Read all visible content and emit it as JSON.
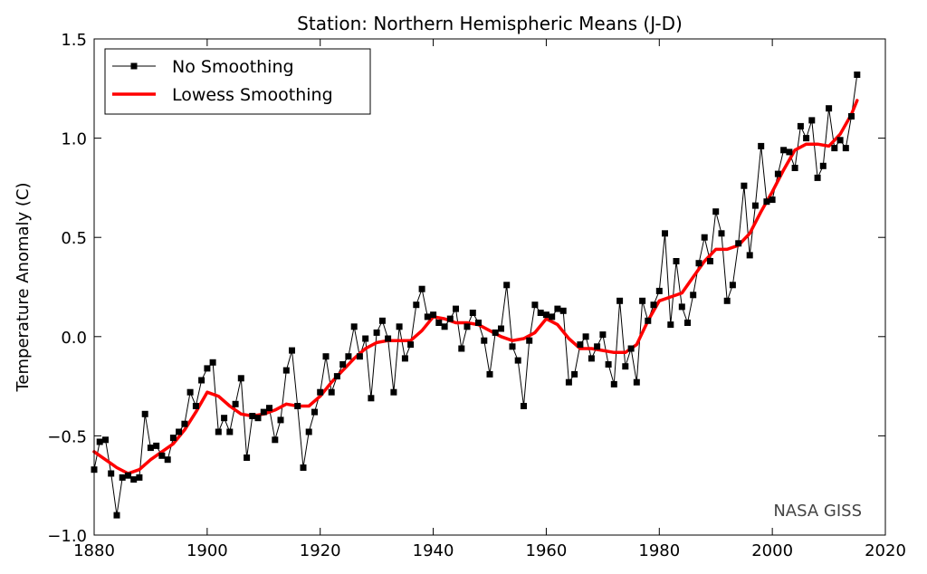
{
  "chart_data": {
    "type": "line",
    "title": "Station: Northern Hemispheric Means (J-D)",
    "xlabel": "",
    "ylabel": "Temperature Anomaly (C)",
    "xlim": [
      1880,
      2020
    ],
    "ylim": [
      -1.0,
      1.5
    ],
    "xticks": [
      1880,
      1900,
      1920,
      1940,
      1960,
      1980,
      2000,
      2020
    ],
    "yticks": [
      -1.0,
      -0.5,
      0.0,
      0.5,
      1.0,
      1.5
    ],
    "xtick_labels": [
      "1880",
      "1900",
      "1920",
      "1940",
      "1960",
      "1980",
      "2000",
      "2020"
    ],
    "ytick_labels": [
      "−1.0",
      "−0.5",
      "0.0",
      "0.5",
      "1.0",
      "1.5"
    ],
    "grid": false,
    "legend_position": "top-left",
    "annotation": "NASA GISS",
    "series": [
      {
        "name": "No Smoothing",
        "color": "#000000",
        "marker": "square",
        "x": [
          1880,
          1881,
          1882,
          1883,
          1884,
          1885,
          1886,
          1887,
          1888,
          1889,
          1890,
          1891,
          1892,
          1893,
          1894,
          1895,
          1896,
          1897,
          1898,
          1899,
          1900,
          1901,
          1902,
          1903,
          1904,
          1905,
          1906,
          1907,
          1908,
          1909,
          1910,
          1911,
          1912,
          1913,
          1914,
          1915,
          1916,
          1917,
          1918,
          1919,
          1920,
          1921,
          1922,
          1923,
          1924,
          1925,
          1926,
          1927,
          1928,
          1929,
          1930,
          1931,
          1932,
          1933,
          1934,
          1935,
          1936,
          1937,
          1938,
          1939,
          1940,
          1941,
          1942,
          1943,
          1944,
          1945,
          1946,
          1947,
          1948,
          1949,
          1950,
          1951,
          1952,
          1953,
          1954,
          1955,
          1956,
          1957,
          1958,
          1959,
          1960,
          1961,
          1962,
          1963,
          1964,
          1965,
          1966,
          1967,
          1968,
          1969,
          1970,
          1971,
          1972,
          1973,
          1974,
          1975,
          1976,
          1977,
          1978,
          1979,
          1980,
          1981,
          1982,
          1983,
          1984,
          1985,
          1986,
          1987,
          1988,
          1989,
          1990,
          1991,
          1992,
          1993,
          1994,
          1995,
          1996,
          1997,
          1998,
          1999,
          2000,
          2001,
          2002,
          2003,
          2004,
          2005,
          2006,
          2007,
          2008,
          2009,
          2010,
          2011,
          2012,
          2013,
          2014,
          2015
        ],
        "y": [
          -0.67,
          -0.53,
          -0.52,
          -0.69,
          -0.9,
          -0.71,
          -0.7,
          -0.72,
          -0.71,
          -0.39,
          -0.56,
          -0.55,
          -0.6,
          -0.62,
          -0.51,
          -0.48,
          -0.44,
          -0.28,
          -0.35,
          -0.22,
          -0.16,
          -0.13,
          -0.48,
          -0.41,
          -0.48,
          -0.34,
          -0.21,
          -0.61,
          -0.4,
          -0.41,
          -0.38,
          -0.36,
          -0.52,
          -0.42,
          -0.17,
          -0.07,
          -0.35,
          -0.66,
          -0.48,
          -0.38,
          -0.28,
          -0.1,
          -0.28,
          -0.2,
          -0.14,
          -0.1,
          0.05,
          -0.1,
          -0.01,
          -0.31,
          0.02,
          0.08,
          -0.01,
          -0.28,
          0.05,
          -0.11,
          -0.04,
          0.16,
          0.24,
          0.1,
          0.11,
          0.07,
          0.05,
          0.09,
          0.14,
          -0.06,
          0.05,
          0.12,
          0.07,
          -0.02,
          -0.19,
          0.02,
          0.04,
          0.26,
          -0.05,
          -0.12,
          -0.35,
          -0.02,
          0.16,
          0.12,
          0.11,
          0.1,
          0.14,
          0.13,
          -0.23,
          -0.19,
          -0.04,
          0.0,
          -0.11,
          -0.05,
          0.01,
          -0.14,
          -0.24,
          0.18,
          -0.15,
          -0.06,
          -0.23,
          0.18,
          0.08,
          0.16,
          0.23,
          0.52,
          0.06,
          0.38,
          0.15,
          0.07,
          0.21,
          0.37,
          0.5,
          0.38,
          0.63,
          0.52,
          0.18,
          0.26,
          0.47,
          0.76,
          0.41,
          0.66,
          0.96,
          0.68,
          0.69,
          0.82,
          0.94,
          0.93,
          0.85,
          1.06,
          1.0,
          1.09,
          0.8,
          0.86,
          1.15,
          0.95,
          0.99,
          0.95,
          1.11,
          1.32
        ]
      },
      {
        "name": "Lowess Smoothing",
        "color": "#ff0000",
        "marker": "none",
        "x": [
          1880,
          1882,
          1884,
          1886,
          1888,
          1890,
          1892,
          1894,
          1896,
          1898,
          1900,
          1902,
          1904,
          1906,
          1908,
          1910,
          1912,
          1914,
          1916,
          1918,
          1920,
          1922,
          1924,
          1926,
          1928,
          1930,
          1932,
          1934,
          1936,
          1938,
          1940,
          1942,
          1944,
          1946,
          1948,
          1950,
          1952,
          1954,
          1956,
          1958,
          1960,
          1962,
          1964,
          1966,
          1968,
          1970,
          1972,
          1974,
          1976,
          1978,
          1980,
          1982,
          1984,
          1986,
          1988,
          1990,
          1992,
          1994,
          1996,
          1998,
          2000,
          2002,
          2004,
          2006,
          2008,
          2010,
          2012,
          2014,
          2015
        ],
        "y": [
          -0.58,
          -0.62,
          -0.66,
          -0.69,
          -0.67,
          -0.62,
          -0.58,
          -0.54,
          -0.47,
          -0.38,
          -0.28,
          -0.3,
          -0.35,
          -0.39,
          -0.4,
          -0.39,
          -0.37,
          -0.34,
          -0.35,
          -0.35,
          -0.3,
          -0.23,
          -0.17,
          -0.11,
          -0.06,
          -0.03,
          -0.02,
          -0.02,
          -0.02,
          0.03,
          0.1,
          0.09,
          0.07,
          0.07,
          0.06,
          0.03,
          0.0,
          -0.02,
          -0.01,
          0.02,
          0.09,
          0.06,
          -0.01,
          -0.06,
          -0.06,
          -0.07,
          -0.08,
          -0.08,
          -0.04,
          0.08,
          0.18,
          0.2,
          0.22,
          0.3,
          0.38,
          0.44,
          0.44,
          0.46,
          0.52,
          0.63,
          0.73,
          0.84,
          0.94,
          0.97,
          0.97,
          0.96,
          1.02,
          1.12,
          1.19
        ]
      }
    ]
  }
}
